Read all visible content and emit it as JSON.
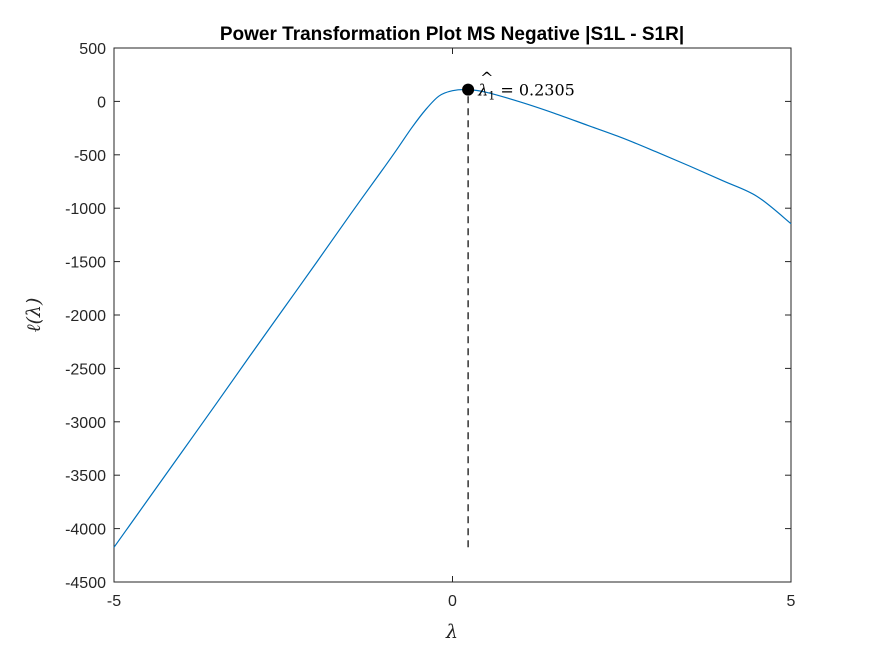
{
  "chart_data": {
    "type": "line",
    "title": "Power Transformation Plot MS Negative |S1L - S1R|",
    "xlabel": "λ",
    "ylabel": "ℓ(λ)",
    "xlim": [
      -5,
      5
    ],
    "ylim": [
      -4500,
      500
    ],
    "xticks": [
      "-5",
      "0",
      "5"
    ],
    "yticks": [
      "500",
      "0",
      "-500",
      "-1000",
      "-1500",
      "-2000",
      "-2500",
      "-3000",
      "-3500",
      "-4000",
      "-4500"
    ],
    "grid": false,
    "series": [
      {
        "color": "#0072BD",
        "x": [
          -5,
          -4.5,
          -4,
          -3.5,
          -3,
          -2.5,
          -2,
          -1.5,
          -1,
          -0.8,
          -0.6,
          -0.4,
          -0.2,
          0,
          0.2305,
          0.5,
          1,
          1.5,
          2,
          2.5,
          3,
          3.5,
          4,
          4.5,
          5
        ],
        "y": [
          -4175,
          -3730,
          -3285,
          -2840,
          -2390,
          -1945,
          -1500,
          -1050,
          -610,
          -430,
          -245,
          -80,
          50,
          100,
          110,
          85,
          -5,
          -110,
          -225,
          -340,
          -470,
          -605,
          -745,
          -890,
          -1145
        ]
      }
    ],
    "marker": {
      "x": 0.2305,
      "y": 110,
      "color": "#000000"
    },
    "vline": {
      "x": 0.2305,
      "y_from": -4175,
      "y_to": 110,
      "style": "dashed"
    },
    "annotation": {
      "hat": "^",
      "symbol": "λ",
      "subscript": "1",
      "text": " = 0.2305"
    }
  }
}
